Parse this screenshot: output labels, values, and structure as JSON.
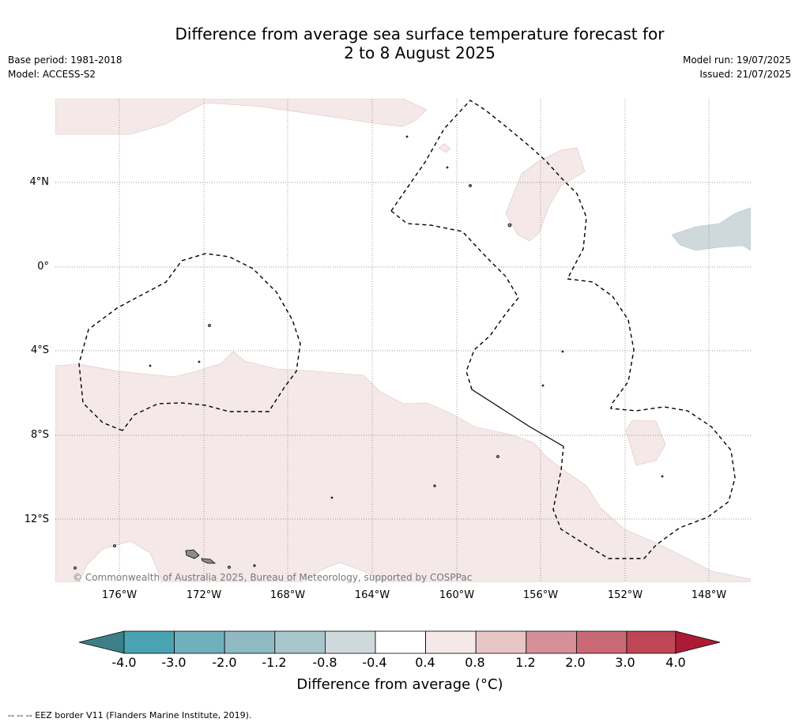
{
  "title": {
    "line1": "Difference from average sea surface temperature forecast for",
    "line2": "2 to 8 August 2025"
  },
  "meta": {
    "base_period": "Base period: 1981-2018",
    "model": "Model: ACCESS-S2",
    "model_run": "Model run: 19/07/2025",
    "issued": "Issued: 21/07/2025"
  },
  "map": {
    "lat_labels": [
      "4°N",
      "0°",
      "4°S",
      "8°S",
      "12°S"
    ],
    "lon_labels": [
      "176°W",
      "172°W",
      "168°W",
      "164°W",
      "160°W",
      "156°W",
      "152°W",
      "148°W"
    ],
    "copyright": "© Commonwealth of Australia 2025, Bureau of Meteorology, supported by COSPPac",
    "colors": {
      "land": "#8c8c8c",
      "warm_0_4": "#f4e9e8",
      "cool_0_4": "#cfd9dc",
      "eez": "#000000"
    }
  },
  "colorbar": {
    "ticks": [
      "-4.0",
      "-3.0",
      "-2.0",
      "-1.2",
      "-0.8",
      "-0.4",
      "0.4",
      "0.8",
      "1.2",
      "2.0",
      "3.0",
      "4.0"
    ],
    "colors": [
      "#3d7f88",
      "#4aa3b2",
      "#6fb0bc",
      "#8fbac4",
      "#a9c6cc",
      "#cfd9dc",
      "#ffffff",
      "#f4e9e8",
      "#e7c6c5",
      "#d58f97",
      "#c96975",
      "#bf4654",
      "#ad1a35"
    ],
    "label": "Difference from average (°C)"
  },
  "footer": "-- -- -- EEZ border V11 (Flanders Marine Institute, 2019)."
}
